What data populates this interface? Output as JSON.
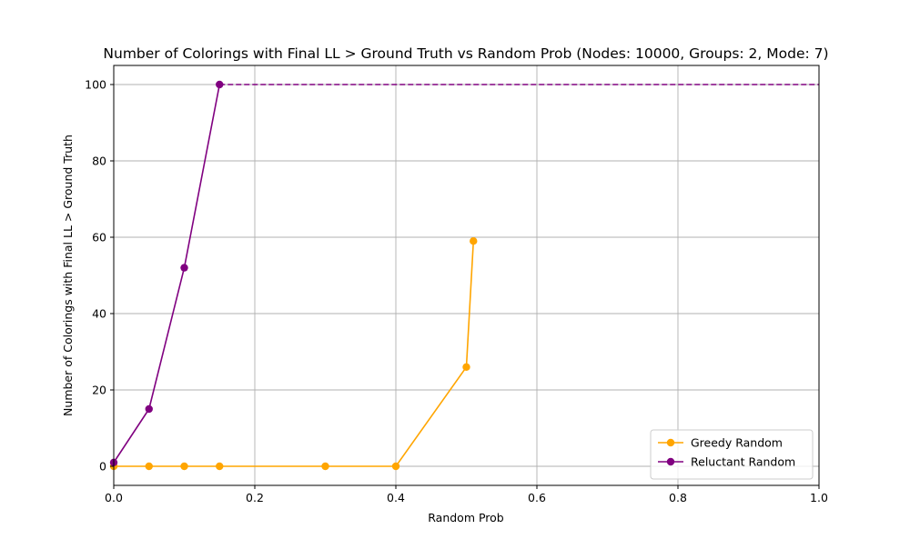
{
  "chart_data": {
    "type": "line",
    "title": "Number of Colorings with Final LL > Ground Truth vs Random Prob (Nodes: 10000, Groups: 2, Mode: 7)",
    "xlabel": "Random Prob",
    "ylabel": "Number of Colorings with Final LL > Ground Truth",
    "xlim": [
      0,
      1
    ],
    "ylim": [
      -5,
      105
    ],
    "xticks": [
      0,
      0.2,
      0.4,
      0.6,
      0.8,
      1
    ],
    "xtick_labels": [
      "0.0",
      "0.2",
      "0.4",
      "0.6",
      "0.8",
      "1.0"
    ],
    "yticks": [
      0,
      20,
      40,
      60,
      80,
      100
    ],
    "ytick_labels": [
      "0",
      "20",
      "40",
      "60",
      "80",
      "100"
    ],
    "grid": true,
    "legend_position": "bottom-right",
    "series": [
      {
        "name": "Greedy Random",
        "color": "#FFA500",
        "marker": "circle",
        "x": [
          0,
          0.05,
          0.1,
          0.15,
          0.3,
          0.4,
          0.5,
          0.51
        ],
        "y": [
          0,
          0,
          0,
          0,
          0,
          0,
          26,
          59
        ]
      },
      {
        "name": "Reluctant Random",
        "color": "#800080",
        "marker": "circle",
        "x": [
          0,
          0.05,
          0.1,
          0.15
        ],
        "y": [
          1,
          15,
          52,
          100
        ]
      }
    ],
    "reference_lines": [
      {
        "type": "dashed",
        "color": "#800080",
        "x_start": 0.15,
        "x_end": 1,
        "y": 100
      }
    ]
  }
}
